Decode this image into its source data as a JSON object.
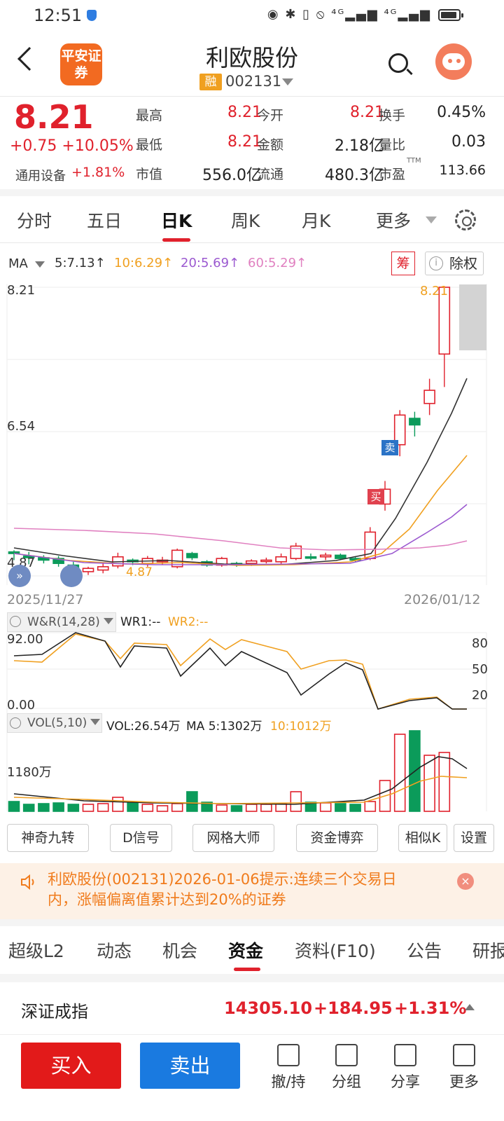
{
  "status": {
    "time": "12:51",
    "icons": "◉ ✱ ▯ ⦸ ⁴ᴳ▂▄▆ ⁴ᴳ▂▄▆"
  },
  "header": {
    "broker_logo": "平安证券",
    "stock_name": "利欧股份",
    "rong_badge": "融",
    "stock_code": "002131"
  },
  "quote": {
    "price": "8.21",
    "change": "+0.75 +10.05%",
    "sector_label": "通用设备",
    "sector_change": "+1.81%",
    "grid": [
      [
        {
          "label": "最高",
          "value": "8.21",
          "color": "red"
        },
        {
          "label": "今开",
          "value": "8.21",
          "color": "red"
        },
        {
          "label": "换手",
          "value": "0.45%",
          "color": "black"
        }
      ],
      [
        {
          "label": "最低",
          "value": "8.21",
          "color": "red"
        },
        {
          "label": "金额",
          "value": "2.18亿",
          "color": "black"
        },
        {
          "label": "量比",
          "value": "0.03",
          "color": "black"
        }
      ],
      [
        {
          "label": "市值",
          "value": "556.0亿",
          "color": "black"
        },
        {
          "label": "流通",
          "value": "480.3亿",
          "color": "black"
        },
        {
          "label": "市盈",
          "value": "113.66",
          "color": "black",
          "sup": "TTM"
        }
      ]
    ]
  },
  "period_tabs": [
    "分时",
    "五日",
    "日K",
    "周K",
    "月K",
    "更多"
  ],
  "active_period": "日K",
  "ma_bar": {
    "selector": "MA",
    "items": [
      {
        "label": "5:7.13↑",
        "color": "#333333"
      },
      {
        "label": "10:6.29↑",
        "color": "#f0a020"
      },
      {
        "label": "20:5.69↑",
        "color": "#9b59d0"
      },
      {
        "label": "60:5.29↑",
        "color": "#e080c0"
      }
    ],
    "chou_label": "筹",
    "chuquan_label": "除权",
    "info_glyph": "i"
  },
  "kline": {
    "y_top": "8.21",
    "y_mid": "6.54",
    "y_low": "4.87",
    "low_marker": "4.87",
    "high_marker": "8.21",
    "date_start": "2025/11/27",
    "date_end": "2026/01/12",
    "sell_tag": "卖",
    "buy_tag": "买"
  },
  "wr": {
    "selector": "W&R(14,28)",
    "wr1": "WR1:--",
    "wr2": "WR2:--",
    "y_top": "92.00",
    "y_bottom": "0.00",
    "right_ticks": [
      "80",
      "50",
      "20"
    ]
  },
  "vol": {
    "selector": "VOL(5,10)",
    "vol_label": "VOL:26.54万",
    "ma5_label": "MA 5:1302万",
    "ma10_label": "10:1012万",
    "y_label": "1180万"
  },
  "tools": [
    "神奇九转",
    "D信号",
    "网格大师",
    "资金博弈",
    "相似K",
    "设置"
  ],
  "notice": {
    "text": "利欧股份(002131)2026-01-06提示:连续三个交易日内，涨幅偏离值累计达到20%的证券",
    "close": "×"
  },
  "bottom_tabs": [
    "超级L2",
    "动态",
    "机会",
    "资金",
    "资料(F10)",
    "公告",
    "研报"
  ],
  "active_bottom_tab": "资金",
  "index_bar": {
    "name": "深证成指",
    "value": "14305.10",
    "change": "+184.95",
    "percent": "+1.31%"
  },
  "actions": {
    "buy": "买入",
    "sell": "卖出",
    "nav": [
      {
        "icon": "withdraw-icon",
        "label": "撤/持"
      },
      {
        "icon": "group-icon",
        "label": "分组"
      },
      {
        "icon": "share-icon",
        "label": "分享"
      },
      {
        "icon": "menu-icon",
        "label": "更多"
      }
    ]
  },
  "colors": {
    "up": "#e0212c",
    "down": "#0b9b5a",
    "accent": "#f26a21",
    "notice": "#f07b1c"
  }
}
